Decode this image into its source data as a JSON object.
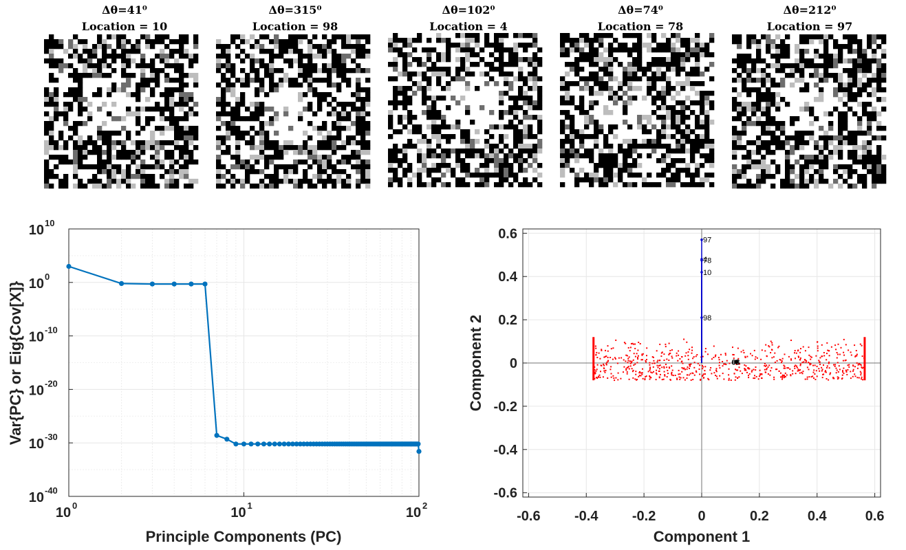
{
  "colors": {
    "scree_line": "#0072bd",
    "loading_line": "#0000cc",
    "scatter_points": "#ff0000",
    "annotation_text": "#000000",
    "grid": "#e6e6e6"
  },
  "chart_data": [
    {
      "type": "image-grid",
      "panels": [
        {
          "delta_theta": "Δθ=41⁰",
          "location": "Location = 10"
        },
        {
          "delta_theta": "Δθ=315⁰",
          "location": "Location = 98"
        },
        {
          "delta_theta": "Δθ=102⁰",
          "location": "Location = 4"
        },
        {
          "delta_theta": "Δθ=74⁰",
          "location": "Location = 78"
        },
        {
          "delta_theta": "Δθ=212⁰",
          "location": "Location = 97"
        }
      ]
    },
    {
      "type": "line",
      "xlabel": "Principle Components (PC)",
      "ylabel": "Var{PC} or Eig{Cov[X]}",
      "xscale": "log",
      "yscale": "log",
      "xlim": [
        1,
        100
      ],
      "ylim_exp": [
        -40,
        10
      ],
      "grid": true,
      "xticks": [
        {
          "base": "10",
          "exp": "0"
        },
        {
          "base": "10",
          "exp": "1"
        },
        {
          "base": "10",
          "exp": "2"
        }
      ],
      "yticks": [
        {
          "base": "10",
          "exp": "10"
        },
        {
          "base": "10",
          "exp": "0"
        },
        {
          "base": "10",
          "exp": "-10"
        },
        {
          "base": "10",
          "exp": "-20"
        },
        {
          "base": "10",
          "exp": "-30"
        },
        {
          "base": "10",
          "exp": "-40"
        }
      ],
      "series": [
        {
          "x": [
            1,
            2,
            3,
            4,
            5,
            6,
            7,
            8,
            9,
            10
          ],
          "log10_y": [
            3,
            -0.2,
            -0.3,
            -0.3,
            -0.3,
            -0.3,
            -28.6,
            -29.3,
            -30.2,
            -30.2
          ],
          "tail": {
            "x_from": 11,
            "x_to": 100,
            "log10_y": -30.2,
            "last_log10_y": -31.6
          }
        }
      ]
    },
    {
      "type": "scatter",
      "xlabel": "Component 1",
      "ylabel": "Component 2",
      "xlim": [
        -0.62,
        0.62
      ],
      "ylim": [
        -0.62,
        0.62
      ],
      "grid": true,
      "xticks": [
        "-0.6",
        "-0.4",
        "-0.2",
        "0",
        "0.2",
        "0.4",
        "0.6"
      ],
      "yticks": [
        "0.6",
        "0.4",
        "0.2",
        "0",
        "-0.2",
        "-0.4",
        "-0.6"
      ],
      "loading_vectors": [
        {
          "label": "97",
          "x": 0,
          "y": 0.57
        },
        {
          "label": "4",
          "x": 0,
          "y": 0.48
        },
        {
          "label": "78",
          "x": 0,
          "y": 0.475
        },
        {
          "label": "10",
          "x": 0,
          "y": 0.42
        },
        {
          "label": "98",
          "x": 0,
          "y": 0.21
        }
      ],
      "cluster_annotation": {
        "label": "63",
        "x": 0.12,
        "y": 0.005
      },
      "scores": {
        "x_range": [
          -0.375,
          0.565
        ],
        "y_range": [
          -0.08,
          0.12
        ],
        "count": 700
      }
    }
  ]
}
